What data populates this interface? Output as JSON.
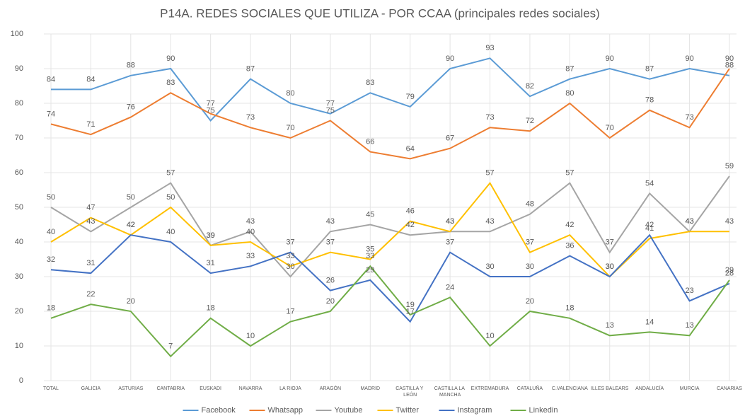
{
  "chart_data": {
    "type": "line",
    "title": "P14A. REDES SOCIALES QUE UTILIZA - POR CCAA (principales redes sociales)",
    "categories": [
      "TOTAL",
      "GALICIA",
      "ASTURIAS",
      "CANTABRIA",
      "EUSKADI",
      "NAVARRA",
      "LA RIOJA",
      "ARAGÓN",
      "MADRID",
      "CASTILLA Y LEÓN",
      "CASTILLA LA MANCHA",
      "EXTREMADURA",
      "CATALUÑA",
      "C.VALENCIANA",
      "ILLES BALEARS",
      "ANDALUCÍA",
      "MURCIA",
      "CANARIAS"
    ],
    "series": [
      {
        "name": "Facebook",
        "color": "#5b9bd5",
        "values": [
          84,
          84,
          88,
          90,
          75,
          87,
          80,
          77,
          83,
          79,
          90,
          93,
          82,
          87,
          90,
          87,
          90,
          88
        ]
      },
      {
        "name": "Whatsapp",
        "color": "#ed7d31",
        "values": [
          74,
          71,
          76,
          83,
          77,
          73,
          70,
          75,
          66,
          64,
          67,
          73,
          72,
          80,
          70,
          78,
          73,
          90
        ]
      },
      {
        "name": "Youtube",
        "color": "#a5a5a5",
        "values": [
          50,
          43,
          50,
          57,
          39,
          43,
          30,
          43,
          45,
          42,
          43,
          43,
          48,
          57,
          37,
          54,
          43,
          59
        ]
      },
      {
        "name": "Twitter",
        "color": "#ffc000",
        "values": [
          40,
          47,
          42,
          50,
          39,
          40,
          33,
          37,
          35,
          46,
          43,
          57,
          37,
          42,
          30,
          41,
          43,
          43
        ]
      },
      {
        "name": "Instagram",
        "color": "#4472c4",
        "values": [
          32,
          31,
          42,
          40,
          31,
          33,
          37,
          26,
          29,
          17,
          37,
          30,
          30,
          36,
          30,
          42,
          23,
          28
        ]
      },
      {
        "name": "Linkedin",
        "color": "#70ad47",
        "values": [
          18,
          22,
          20,
          7,
          18,
          10,
          17,
          20,
          33,
          19,
          24,
          10,
          20,
          18,
          13,
          14,
          13,
          29
        ]
      }
    ],
    "ylim": [
      0,
      100
    ],
    "yticks": [
      0,
      10,
      20,
      30,
      40,
      50,
      60,
      70,
      80,
      90,
      100
    ],
    "grid": true,
    "legend": "bottom"
  }
}
